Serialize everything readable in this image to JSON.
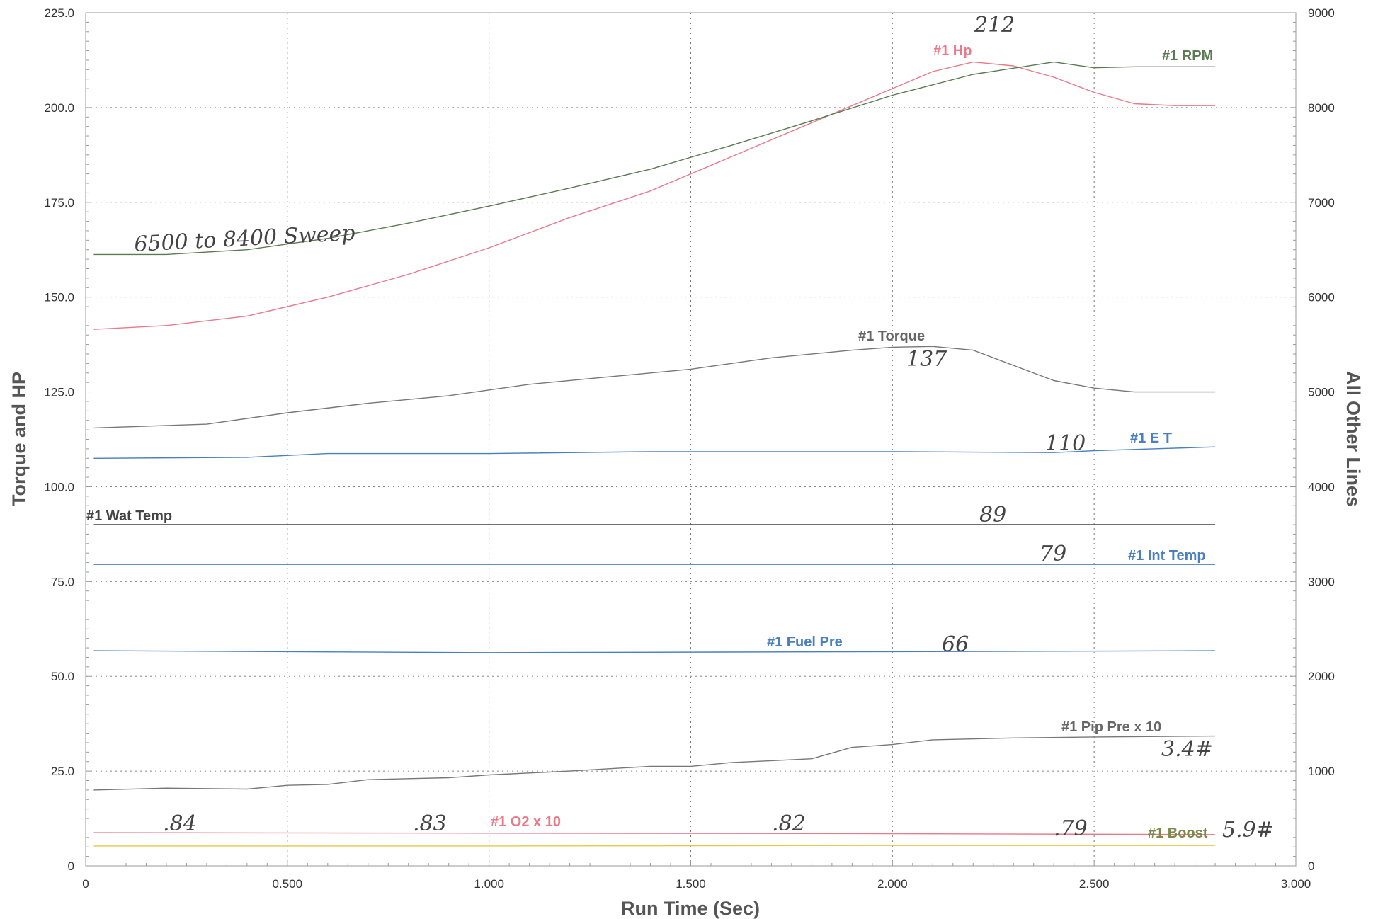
{
  "chart_data": {
    "type": "line",
    "title": "",
    "xlabel": "Run Time (Sec)",
    "ylabel_left": "Torque and HP",
    "ylabel_right": "All Other Lines",
    "xlim": [
      0,
      3.0
    ],
    "ylim_left": [
      0,
      225
    ],
    "ylim_right": [
      0,
      9000
    ],
    "x_ticks": [
      0,
      0.5,
      1.0,
      1.5,
      2.0,
      2.5,
      3.0
    ],
    "x_tick_labels": [
      "0",
      "0.500",
      "1.000",
      "1.500",
      "2.000",
      "2.500",
      "3.000"
    ],
    "y_left_ticks": [
      0,
      25,
      50,
      75,
      100,
      125,
      150,
      175,
      200,
      225
    ],
    "y_left_tick_labels": [
      "0",
      "25.0",
      "50.0",
      "75.0",
      "100.0",
      "125.0",
      "150.0",
      "175.0",
      "200.0",
      "225.0"
    ],
    "y_right_ticks": [
      0,
      1000,
      2000,
      3000,
      4000,
      5000,
      6000,
      7000,
      8000,
      9000
    ],
    "y_right_tick_labels": [
      "0",
      "1000",
      "2000",
      "3000",
      "4000",
      "5000",
      "6000",
      "7000",
      "8000",
      "9000"
    ],
    "grid": true,
    "series": [
      {
        "name": "#1 Hp",
        "color": "#e87a8a",
        "x": [
          0.02,
          0.2,
          0.4,
          0.6,
          0.8,
          1.0,
          1.2,
          1.4,
          1.6,
          1.8,
          2.0,
          2.1,
          2.2,
          2.3,
          2.4,
          2.5,
          2.6,
          2.7,
          2.8
        ],
        "y": [
          141.5,
          142.5,
          145,
          150,
          156,
          163,
          171,
          178,
          187,
          196,
          205,
          209.5,
          212,
          211,
          208,
          204,
          201,
          200.5,
          200.5
        ]
      },
      {
        "name": "#1 RPM",
        "color": "#5a7a52",
        "x": [
          0.02,
          0.2,
          0.4,
          0.6,
          0.8,
          1.0,
          1.2,
          1.4,
          1.6,
          1.8,
          2.0,
          2.2,
          2.4,
          2.5,
          2.6,
          2.7,
          2.8
        ],
        "y": [
          6450,
          6450,
          6500,
          6620,
          6780,
          6960,
          7150,
          7350,
          7600,
          7860,
          8130,
          8350,
          8480,
          8420,
          8430,
          8430,
          8430
        ]
      },
      {
        "name": "#1 Torque",
        "color": "#777777",
        "x": [
          0.02,
          0.3,
          0.5,
          0.7,
          0.9,
          1.1,
          1.3,
          1.5,
          1.7,
          1.9,
          2.0,
          2.1,
          2.2,
          2.3,
          2.4,
          2.5,
          2.6,
          2.8
        ],
        "y": [
          115.5,
          116.5,
          119.5,
          122,
          124,
          127,
          129,
          131,
          134,
          136,
          136.8,
          137,
          136,
          132,
          128,
          126,
          125,
          125
        ]
      },
      {
        "name": "#1 E T",
        "color": "#4a7fc0",
        "x": [
          0.02,
          0.4,
          0.6,
          1.0,
          1.4,
          2.0,
          2.4,
          2.5,
          2.8
        ],
        "y": [
          4300,
          4310,
          4350,
          4350,
          4370,
          4370,
          4360,
          4380,
          4420
        ]
      },
      {
        "name": "#1 Wat Temp",
        "color": "#444444",
        "x": [
          0.02,
          2.8
        ],
        "y": [
          3600,
          3600
        ]
      },
      {
        "name": "#1 Int Temp",
        "color": "#4a7fc0",
        "x": [
          0.02,
          2.8
        ],
        "y": [
          3180,
          3180
        ]
      },
      {
        "name": "#1 Fuel Pre",
        "color": "#4a7fc0",
        "x": [
          0.02,
          1.0,
          2.0,
          2.8
        ],
        "y": [
          2270,
          2250,
          2260,
          2270
        ]
      },
      {
        "name": "#1 Pip Pre x 10",
        "color": "#777777",
        "x": [
          0.02,
          0.2,
          0.4,
          0.5,
          0.6,
          0.7,
          0.8,
          0.9,
          1.0,
          1.2,
          1.4,
          1.5,
          1.6,
          1.7,
          1.8,
          1.9,
          2.0,
          2.1,
          2.3,
          2.5,
          2.8
        ],
        "y": [
          800,
          820,
          810,
          850,
          860,
          910,
          920,
          930,
          960,
          1000,
          1050,
          1050,
          1090,
          1110,
          1130,
          1250,
          1280,
          1330,
          1350,
          1360,
          1370
        ]
      },
      {
        "name": "#1 O2 x 10",
        "color": "#e87a8a",
        "x": [
          0.02,
          1.0,
          2.0,
          2.8
        ],
        "y": [
          350,
          345,
          340,
          330
        ]
      },
      {
        "name": "#1 Boost",
        "color": "#e8c84a",
        "x": [
          0.02,
          1.0,
          2.0,
          2.8
        ],
        "y": [
          210,
          210,
          215,
          215
        ]
      }
    ],
    "series_labels": [
      "#1 Hp",
      "#1 RPM",
      "#1 Torque",
      "#1 E T",
      "#1 Wat Temp",
      "#1 Int Temp",
      "#1 Fuel Pre",
      "#1 Pip Pre x 10",
      "#1 O2 x 10",
      "#1 Boost"
    ],
    "annotations": [
      "212",
      "6500 to 8400 Sweep",
      "137",
      "110",
      "89",
      "79",
      "66",
      "3.4#",
      ".84",
      ".83",
      ".82",
      ".79",
      "5.9#"
    ]
  }
}
